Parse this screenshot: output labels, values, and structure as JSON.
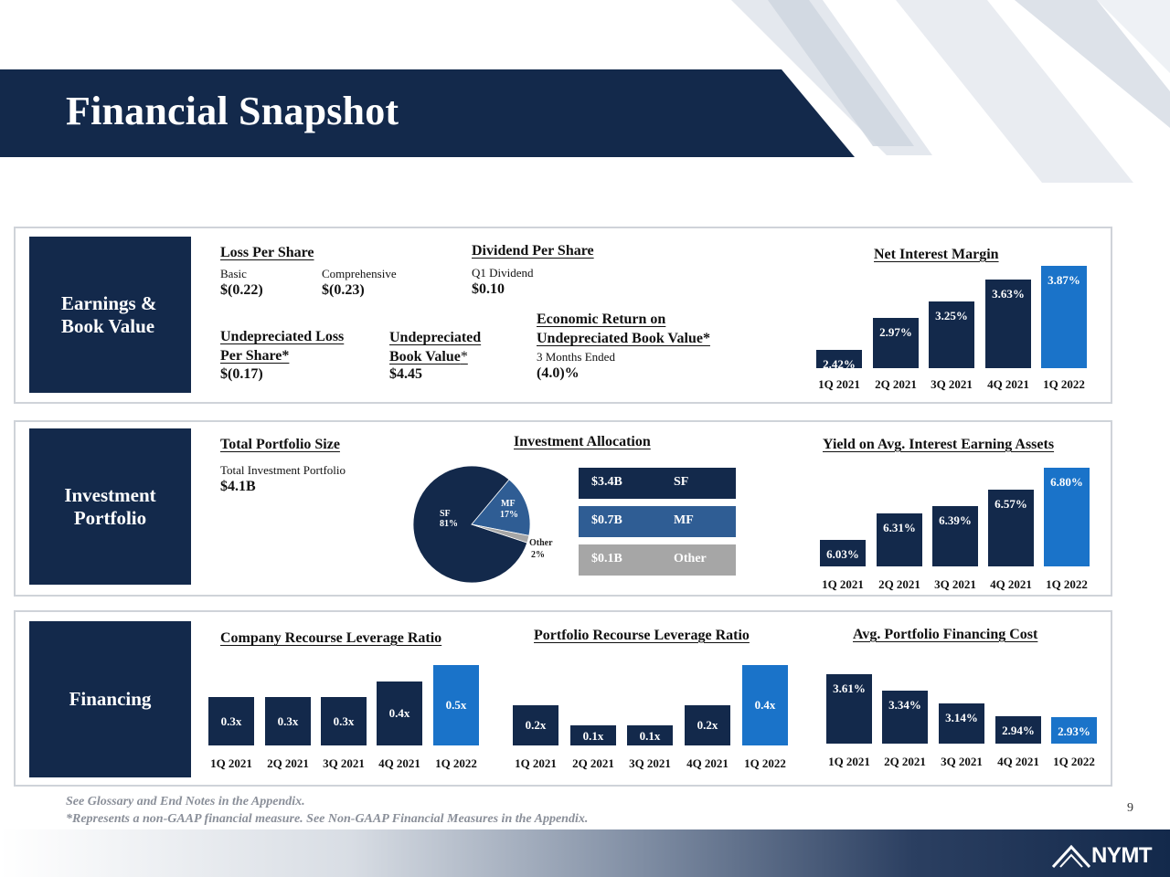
{
  "title": "Financial Snapshot",
  "sections": {
    "earnings": {
      "label_line1": "Earnings &",
      "label_line2": "Book Value"
    },
    "investment": {
      "label_line1": "Investment",
      "label_line2": "Portfolio"
    },
    "financing": {
      "label": "Financing"
    }
  },
  "loss_per_share": {
    "header": "Loss Per Share",
    "basic_label": "Basic",
    "basic_value": "$(0.22)",
    "comprehensive_label": "Comprehensive",
    "comprehensive_value": "$(0.23)"
  },
  "dividend_per_share": {
    "header": "Dividend Per Share",
    "label": "Q1 Dividend",
    "value": "$0.10"
  },
  "undepreciated_loss": {
    "header_line1": "Undepreciated Loss",
    "header_line2": "Per Share*",
    "value": "$(0.17)"
  },
  "undepreciated_book_value": {
    "header_line1": "Undepreciated",
    "header_line2": "Book Value",
    "asterisk": "*",
    "value": "$4.45"
  },
  "economic_return": {
    "header_line1": "Economic Return on",
    "header_line2": "Undepreciated Book Value*",
    "label": "3 Months Ended",
    "value": "(4.0)%"
  },
  "total_portfolio": {
    "header": "Total Portfolio Size",
    "label": "Total Investment Portfolio",
    "value": "$4.1B"
  },
  "investment_allocation": {
    "header": "Investment Allocation",
    "legend": [
      {
        "value": "$3.4B",
        "name": "SF",
        "color": "#13294b"
      },
      {
        "value": "$0.7B",
        "name": "MF",
        "color": "#2f5d94"
      },
      {
        "value": "$0.1B",
        "name": "Other",
        "color": "#a6a6a6"
      }
    ],
    "pie_labels": {
      "sf_name": "SF",
      "sf_pct": "81%",
      "mf_name": "MF",
      "mf_pct": "17%",
      "other_name": "Other",
      "other_pct": "2%"
    }
  },
  "chart_data": [
    {
      "type": "bar",
      "title": "Net Interest Margin",
      "categories": [
        "1Q 2021",
        "2Q 2021",
        "3Q 2021",
        "4Q 2021",
        "1Q 2022"
      ],
      "values": [
        2.42,
        2.97,
        3.25,
        3.63,
        3.87
      ],
      "labels": [
        "2.42%",
        "2.97%",
        "3.25%",
        "3.63%",
        "3.87%"
      ],
      "highlight_color": "#1a73c9",
      "color": "#13294b"
    },
    {
      "type": "bar",
      "title": "Yield on Avg. Interest Earning Assets",
      "categories": [
        "1Q 2021",
        "2Q 2021",
        "3Q 2021",
        "4Q 2021",
        "1Q 2022"
      ],
      "values": [
        6.03,
        6.31,
        6.39,
        6.57,
        6.8
      ],
      "labels": [
        "6.03%",
        "6.31%",
        "6.39%",
        "6.57%",
        "6.80%"
      ],
      "highlight_color": "#1a73c9",
      "color": "#13294b"
    },
    {
      "type": "pie",
      "title": "Investment Allocation",
      "categories": [
        "SF",
        "MF",
        "Other"
      ],
      "values": [
        81,
        17,
        2
      ],
      "colors": [
        "#13294b",
        "#2f5d94",
        "#a6a6a6"
      ]
    },
    {
      "type": "bar",
      "title": "Company Recourse Leverage Ratio",
      "categories": [
        "1Q 2021",
        "2Q 2021",
        "3Q 2021",
        "4Q 2021",
        "1Q 2022"
      ],
      "values": [
        0.3,
        0.3,
        0.3,
        0.4,
        0.5
      ],
      "labels": [
        "0.3x",
        "0.3x",
        "0.3x",
        "0.4x",
        "0.5x"
      ],
      "highlight_color": "#1a73c9",
      "color": "#13294b"
    },
    {
      "type": "bar",
      "title": "Portfolio Recourse Leverage Ratio",
      "categories": [
        "1Q 2021",
        "2Q 2021",
        "3Q 2021",
        "4Q 2021",
        "1Q 2022"
      ],
      "values": [
        0.2,
        0.1,
        0.1,
        0.2,
        0.4
      ],
      "labels": [
        "0.2x",
        "0.1x",
        "0.1x",
        "0.2x",
        "0.4x"
      ],
      "highlight_color": "#1a73c9",
      "color": "#13294b"
    },
    {
      "type": "bar",
      "title": "Avg. Portfolio Financing Cost",
      "categories": [
        "1Q 2021",
        "2Q 2021",
        "3Q 2021",
        "4Q 2021",
        "1Q 2022"
      ],
      "values": [
        3.61,
        3.34,
        3.14,
        2.94,
        2.93
      ],
      "labels": [
        "3.61%",
        "3.34%",
        "3.14%",
        "2.94%",
        "2.93%"
      ],
      "highlight_color": "#1a73c9",
      "color": "#13294b"
    }
  ],
  "footnotes": {
    "line1": "See Glossary and End Notes in the Appendix.",
    "line2": "*Represents a non-GAAP financial measure. See Non-GAAP Financial Measures in the Appendix."
  },
  "page_number": "9",
  "logo_text": "NYMT"
}
